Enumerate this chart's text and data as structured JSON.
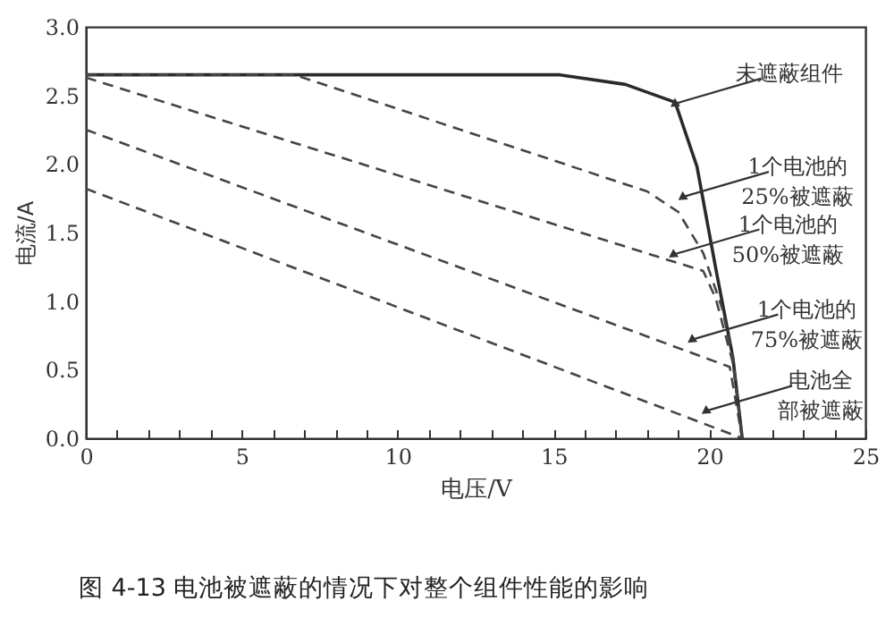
{
  "chart_data": {
    "type": "line",
    "title": "图 4-13   电池被遮蔽的情况下对整个组件性能的影响",
    "xlabel": "电压/V",
    "ylabel": "电流/A",
    "xlim": [
      0,
      25
    ],
    "ylim": [
      0,
      3
    ],
    "xticks": [
      0,
      {
        "value": 1,
        "label": null
      },
      {
        "value": 2,
        "label": null
      },
      {
        "value": 3,
        "label": null
      },
      {
        "value": 4,
        "label": null
      },
      5,
      {
        "value": 6,
        "label": null
      },
      {
        "value": 7,
        "label": null
      },
      {
        "value": 8,
        "label": null
      },
      {
        "value": 9,
        "label": null
      },
      10,
      {
        "value": 11,
        "label": null
      },
      {
        "value": 12,
        "label": null
      },
      {
        "value": 13,
        "label": null
      },
      {
        "value": 14,
        "label": null
      },
      15,
      {
        "value": 16,
        "label": null
      },
      {
        "value": 17,
        "label": null
      },
      {
        "value": 18,
        "label": null
      },
      {
        "value": 19,
        "label": null
      },
      20,
      {
        "value": 21,
        "label": null
      },
      {
        "value": 22,
        "label": null
      },
      {
        "value": 23,
        "label": null
      },
      {
        "value": 24,
        "label": null
      },
      25
    ],
    "yticks": [
      {
        "value": 0,
        "label": "0.0"
      },
      {
        "value": 0.5,
        "label": "0.5"
      },
      {
        "value": 1,
        "label": "1.0"
      },
      {
        "value": 1.5,
        "label": "1.5"
      },
      {
        "value": 2,
        "label": "2.0"
      },
      {
        "value": 2.5,
        "label": "2.5"
      },
      {
        "value": 3,
        "label": "3.0"
      }
    ],
    "series": [
      {
        "color": "#2a2a2a",
        "line_style": "solid",
        "x": [
          0,
          15.2,
          17.3,
          18.9,
          19.6,
          20.2,
          20.75,
          21.05
        ],
        "values": [
          2.65,
          2.65,
          2.58,
          2.45,
          1.98,
          1.24,
          0.59,
          0
        ]
      },
      {
        "color": "#444444",
        "line_style": "dashed",
        "x": [
          0,
          6.7,
          18.0,
          19.0,
          19.8,
          20.4,
          20.75,
          21.05
        ],
        "values": [
          2.65,
          2.65,
          1.8,
          1.65,
          1.35,
          0.95,
          0.59,
          0
        ]
      },
      {
        "color": "#444444",
        "line_style": "dashed",
        "x": [
          0,
          19.8,
          20.2,
          20.75,
          21.05
        ],
        "values": [
          2.63,
          1.22,
          1.02,
          0.55,
          0
        ]
      },
      {
        "color": "#444444",
        "line_style": "dashed",
        "x": [
          0,
          20.65,
          21.05
        ],
        "values": [
          2.25,
          0.52,
          0
        ]
      },
      {
        "color": "#444444",
        "line_style": "dashed",
        "x": [
          0,
          21.05
        ],
        "values": [
          1.82,
          0
        ]
      }
    ],
    "annotations": [
      {
        "text": "未遮蔽组件",
        "x": 18.9,
        "y": 2.44
      },
      {
        "text": "1个电池的25%被遮蔽",
        "x": 19.15,
        "y": 1.76
      },
      {
        "text": "1个电池的50%被遮蔽",
        "x": 18.85,
        "y": 1.34
      },
      {
        "text": "1个电池的75%被遮蔽",
        "x": 19.45,
        "y": 0.72
      },
      {
        "text": "电池全部被遮蔽",
        "x": 19.9,
        "y": 0.2
      }
    ]
  }
}
